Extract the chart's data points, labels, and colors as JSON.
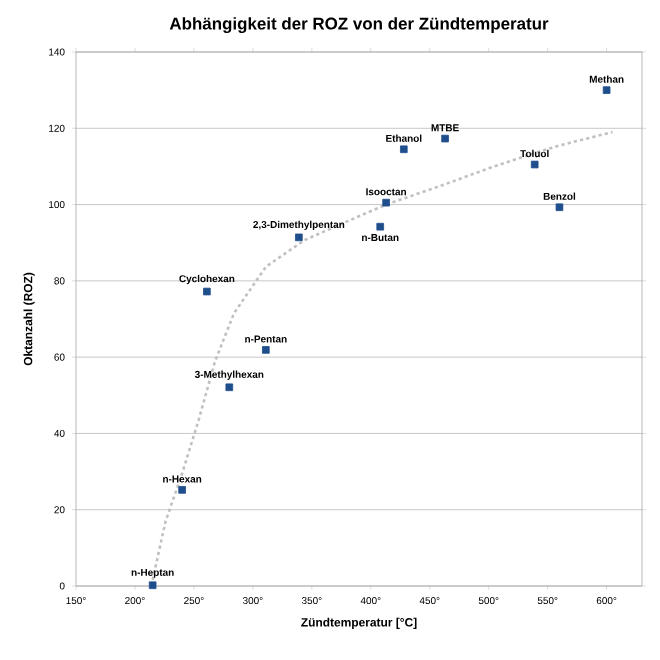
{
  "chart_data": {
    "type": "scatter",
    "title": "Abhängigkeit der ROZ von der Zündtemperatur",
    "xlabel": "Zündtemperatur [°C]",
    "ylabel": "Oktanzahl (ROZ)",
    "xlim": [
      150,
      630
    ],
    "ylim": [
      0,
      140
    ],
    "xticks": [
      {
        "value": 150,
        "label": "150°"
      },
      {
        "value": 200,
        "label": "200°"
      },
      {
        "value": 250,
        "label": "250°"
      },
      {
        "value": 300,
        "label": "300°"
      },
      {
        "value": 350,
        "label": "350°"
      },
      {
        "value": 400,
        "label": "400°"
      },
      {
        "value": 450,
        "label": "450°"
      },
      {
        "value": 500,
        "label": "500°"
      },
      {
        "value": 550,
        "label": "550°"
      },
      {
        "value": 600,
        "label": "600°"
      }
    ],
    "yticks": [
      0,
      20,
      40,
      60,
      80,
      100,
      120,
      140
    ],
    "grid": "y",
    "series": [
      {
        "type": "line",
        "color": "#c0c0c0",
        "line_style": "dotted",
        "marker": "none",
        "x": [
          215,
          226,
          240,
          254,
          268,
          284,
          311,
          344,
          383,
          413,
          460,
          500,
          539,
          560,
          605
        ],
        "values": [
          1.6,
          17,
          29.5,
          43.5,
          59,
          71.5,
          83.7,
          90.7,
          96,
          100,
          105,
          109.5,
          113.5,
          115.5,
          119
        ]
      },
      {
        "type": "scatter",
        "color": "#1f4e8c",
        "marker": "square",
        "x": [
          600,
          428,
          463,
          539,
          413,
          560,
          408,
          339,
          261,
          311,
          280,
          240,
          215
        ],
        "values": [
          130,
          114.5,
          117.3,
          110.5,
          100.5,
          99.3,
          94.2,
          91.4,
          77.2,
          61.9,
          52.1,
          25.2,
          0.2
        ]
      }
    ],
    "annotations": [
      {
        "text": "Methan",
        "x": 600,
        "y": 130
      },
      {
        "text": "Ethanol",
        "x": 428,
        "y": 114.5
      },
      {
        "text": "MTBE",
        "x": 463,
        "y": 117.3
      },
      {
        "text": "Toluol",
        "x": 539,
        "y": 110.5
      },
      {
        "text": "Isooctan",
        "x": 413,
        "y": 100.5
      },
      {
        "text": "Benzol",
        "x": 560,
        "y": 99.3
      },
      {
        "text": "n-Butan",
        "x": 408,
        "y": 94.2
      },
      {
        "text": "2,3-Dimethylpentan",
        "x": 339,
        "y": 91.4
      },
      {
        "text": "Cyclohexan",
        "x": 261,
        "y": 77.2
      },
      {
        "text": "n-Pentan",
        "x": 311,
        "y": 61.9
      },
      {
        "text": "3-Methylhexan",
        "x": 280,
        "y": 52.1
      },
      {
        "text": "n-Hexan",
        "x": 240,
        "y": 25.2
      },
      {
        "text": "n-Heptan",
        "x": 215,
        "y": 0.2
      }
    ]
  }
}
